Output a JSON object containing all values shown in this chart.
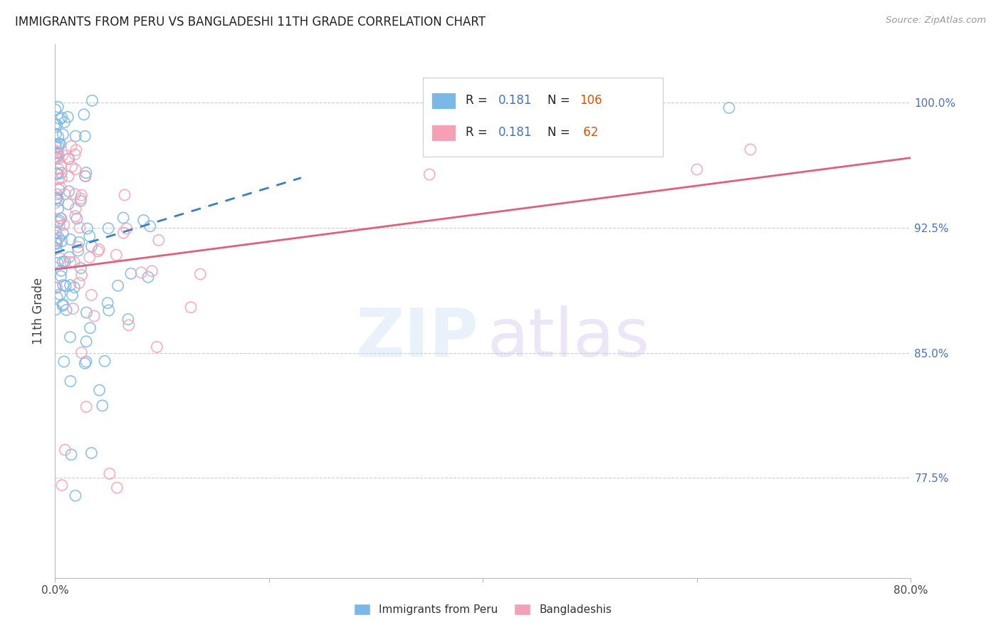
{
  "title": "IMMIGRANTS FROM PERU VS BANGLADESHI 11TH GRADE CORRELATION CHART",
  "source": "Source: ZipAtlas.com",
  "ylabel": "11th Grade",
  "ytick_labels": [
    "77.5%",
    "85.0%",
    "92.5%",
    "100.0%"
  ],
  "ytick_values": [
    0.775,
    0.85,
    0.925,
    1.0
  ],
  "xlim": [
    0.0,
    0.8
  ],
  "ylim": [
    0.715,
    1.035
  ],
  "peru_color": "#7ab8e8",
  "bang_color": "#f5a0b5",
  "peru_line_color": "#3a7fc1",
  "bang_line_color": "#e0607a",
  "background_color": "#ffffff",
  "grid_color": "#cccccc",
  "legend_peru_label": "R = 0.181  N = 106",
  "legend_bang_label": "R = 0.181  N =  62",
  "bottom_label_peru": "Immigrants from Peru",
  "bottom_label_bang": "Bangladeshis"
}
